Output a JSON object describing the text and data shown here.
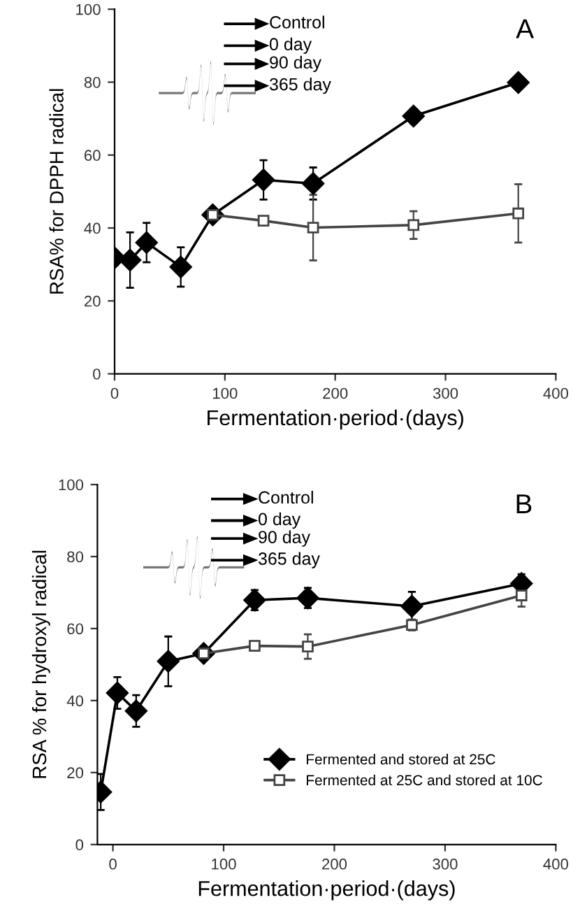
{
  "chart_data": [
    {
      "type": "line",
      "xlabel": "Fermentation·period·(days)",
      "ylabel": "RSA% for DPPH radical",
      "xlim": [
        0,
        400
      ],
      "ylim": [
        0,
        100
      ],
      "xticks": [
        0,
        100,
        200,
        300,
        400
      ],
      "yticks": [
        0,
        20,
        40,
        60,
        80,
        100
      ],
      "grid": false,
      "legend": false,
      "annotations": [
        "A",
        "Control",
        "0 day",
        "90 day",
        "365 day"
      ],
      "series": [
        {
          "color": "#000000",
          "marker": "diamond",
          "x": [
            0,
            14,
            29,
            60,
            89,
            135,
            180,
            271,
            366
          ],
          "values": [
            31.8,
            31.2,
            36,
            29.3,
            43.6,
            53.2,
            52.2,
            70.7,
            79.9
          ],
          "errors": [
            2,
            7.6,
            5.4,
            5.4,
            null,
            5.4,
            4.4,
            2,
            1
          ]
        },
        {
          "color": "#444444",
          "marker": "square",
          "x": [
            89,
            135,
            180,
            271,
            366
          ],
          "values": [
            43.6,
            42,
            40.1,
            40.8,
            44
          ],
          "errors": [
            1,
            1,
            9,
            3.8,
            8
          ]
        }
      ]
    },
    {
      "type": "line",
      "xlabel": "Fermentation·period·(days)",
      "ylabel": "RSA % for hydroxyl radical",
      "xlim": [
        -14,
        400
      ],
      "ylim": [
        0,
        100
      ],
      "xticks": [
        0,
        100,
        200,
        300,
        400
      ],
      "yticks": [
        0,
        20,
        40,
        60,
        80,
        100
      ],
      "grid": false,
      "legend": "bottom right",
      "annotations": [
        "B",
        "Control",
        "0 day",
        "90 day",
        "365 day"
      ],
      "series": [
        {
          "name": "Fermented and stored at 25C",
          "color": "#000000",
          "marker": "diamond",
          "x": [
            -11,
            4,
            21,
            50,
            82,
            128,
            176,
            270,
            369
          ],
          "values": [
            14.6,
            42.1,
            37.1,
            50.9,
            53.1,
            67.9,
            68.5,
            66.2,
            72.5
          ],
          "errors": [
            5,
            4.4,
            4.4,
            6.9,
            null,
            2.8,
            2.8,
            4,
            2.6
          ]
        },
        {
          "name": "Fermented at 25C and stored at 10C",
          "color": "#444444",
          "marker": "square",
          "x": [
            82,
            128,
            176,
            270,
            369
          ],
          "values": [
            53.1,
            55.2,
            55,
            61,
            69.2
          ],
          "errors": [
            1,
            1,
            3.4,
            1.5,
            3.1
          ]
        }
      ]
    }
  ]
}
